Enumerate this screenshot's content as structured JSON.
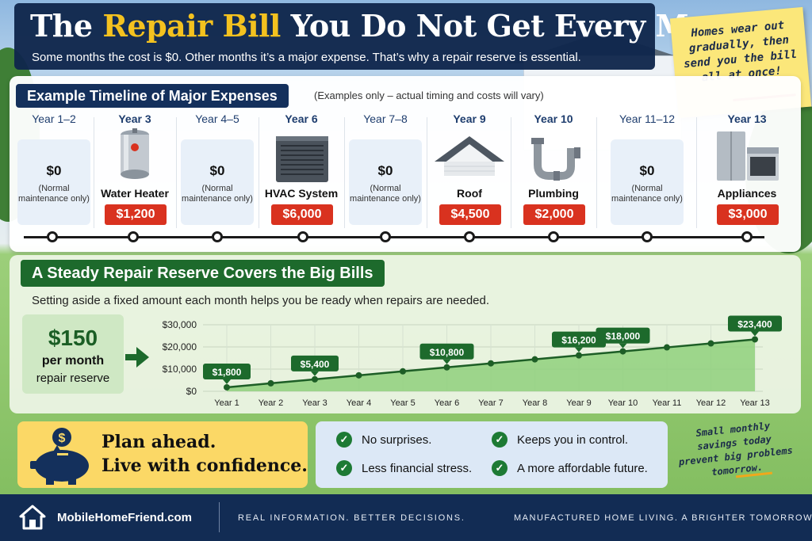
{
  "header": {
    "title_pre": "The ",
    "title_highlight": "Repair Bill",
    "title_post": " You Do Not Get Every Month",
    "subtitle": "Some months the cost is $0. Other months it’s a major expense. That’s why a repair reserve is essential."
  },
  "sticky_note": "Homes wear out gradually, then send you the bill all at once!",
  "timeline": {
    "heading": "Example Timeline of Major Expenses",
    "note": "(Examples only – actual timing and costs will vary)",
    "items": [
      {
        "year": "Year 1–2",
        "amount": "$0",
        "note": "(Normal maintenance only)"
      },
      {
        "year": "Year 3",
        "label": "Water Heater",
        "cost": "$1,200",
        "icon": "water-heater-icon"
      },
      {
        "year": "Year 4–5",
        "amount": "$0",
        "note": "(Normal maintenance only)"
      },
      {
        "year": "Year 6",
        "label": "HVAC System",
        "cost": "$6,000",
        "icon": "hvac-unit-icon"
      },
      {
        "year": "Year 7–8",
        "amount": "$0",
        "note": "(Normal maintenance only)"
      },
      {
        "year": "Year 9",
        "label": "Roof",
        "cost": "$4,500",
        "icon": "roof-icon"
      },
      {
        "year": "Year 10",
        "label": "Plumbing",
        "cost": "$2,000",
        "icon": "pipe-icon"
      },
      {
        "year": "Year 11–12",
        "amount": "$0",
        "note": "(Normal maintenance only)"
      },
      {
        "year": "Year 13",
        "label": "Appliances",
        "cost": "$3,000",
        "icon": "appliances-icon"
      }
    ]
  },
  "reserve": {
    "heading": "A Steady Repair Reserve Covers the Big Bills",
    "subheading": "Setting aside a fixed amount each month helps you be ready when repairs are needed.",
    "amount": "$150",
    "per": "per month",
    "label": "repair reserve"
  },
  "chart_data": {
    "type": "area",
    "categories": [
      "Year 1",
      "Year 2",
      "Year 3",
      "Year 4",
      "Year 5",
      "Year 6",
      "Year 7",
      "Year 8",
      "Year 9",
      "Year 10",
      "Year 11",
      "Year 12",
      "Year 13"
    ],
    "values": [
      1800,
      3600,
      5400,
      7200,
      9000,
      10800,
      12600,
      14400,
      16200,
      18000,
      19800,
      21600,
      23400
    ],
    "data_labels": [
      {
        "index": 0,
        "text": "$1,800"
      },
      {
        "index": 2,
        "text": "$5,400"
      },
      {
        "index": 5,
        "text": "$10,800"
      },
      {
        "index": 8,
        "text": "$16,200"
      },
      {
        "index": 9,
        "text": "$18,000"
      },
      {
        "index": 12,
        "text": "$23,400"
      }
    ],
    "yticks": [
      "$0",
      "$10,000",
      "$20,000",
      "$30,000"
    ],
    "ytick_values": [
      0,
      10000,
      20000,
      30000
    ],
    "ylim": [
      0,
      30000
    ],
    "grid": true,
    "colors": {
      "fill": "#8fd07c",
      "line": "#1d5e26",
      "label_bg": "#1d6a2c"
    }
  },
  "plan": {
    "line1": "Plan ahead.",
    "line2": "Live with confidence."
  },
  "benefits": [
    "No surprises.",
    "Keeps you in control.",
    "Less financial stress.",
    "A more affordable future."
  ],
  "side_note": "Small monthly savings today prevent big problems tomorrow.",
  "footer": {
    "site": "MobileHomeFriend.com",
    "tagline1": "REAL INFORMATION. BETTER DECISIONS.",
    "tagline2": "MANUFACTURED HOME LIVING. A BRIGHTER TOMORROW."
  },
  "colors": {
    "navy": "#14305c",
    "gold": "#f4c21f",
    "red": "#d9321f",
    "green": "#1d6a2c"
  }
}
